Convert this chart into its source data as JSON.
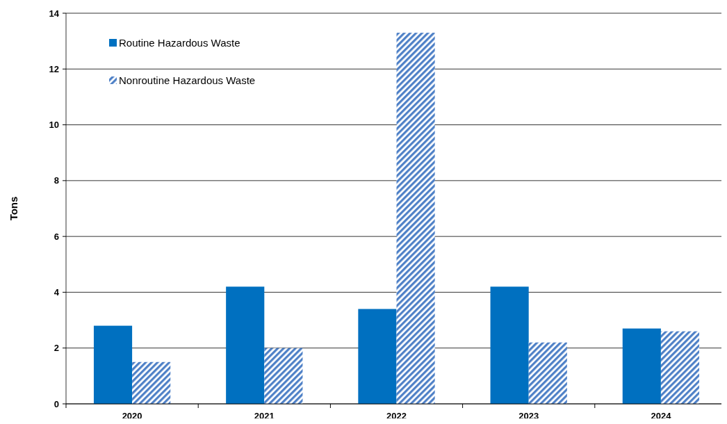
{
  "chart_data": {
    "type": "bar",
    "ylabel": "Tons",
    "categories": [
      "2020",
      "2021",
      "2022",
      "2023",
      "2024"
    ],
    "series": [
      {
        "name": "Routine Hazardous Waste",
        "color": "#0070c0",
        "values": [
          2.8,
          4.2,
          3.4,
          4.2,
          2.7
        ]
      },
      {
        "name": "Nonroutine Hazardous Waste",
        "color": "#4f81c7",
        "values": [
          1.5,
          2.0,
          13.3,
          2.2,
          2.6
        ]
      }
    ],
    "ylim": [
      0,
      14
    ],
    "yticks": [
      0,
      2,
      4,
      6,
      8,
      10,
      12,
      14
    ],
    "grid": "y",
    "legend": "top left"
  }
}
